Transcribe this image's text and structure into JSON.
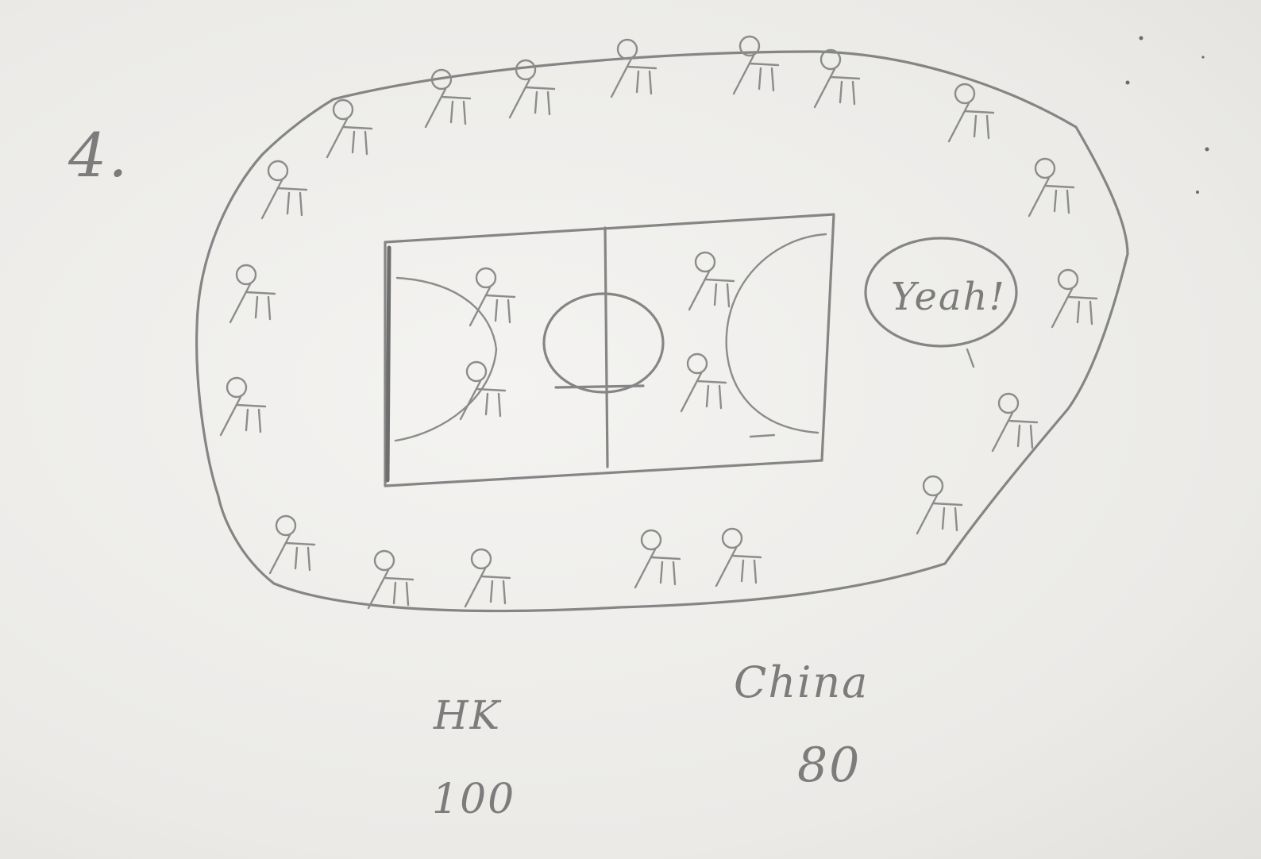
{
  "sheet": {
    "number": "4.",
    "speech_bubble": "Yeah!",
    "teams": [
      {
        "name": "HK",
        "score": "100"
      },
      {
        "name": "China",
        "score": "80"
      }
    ]
  }
}
